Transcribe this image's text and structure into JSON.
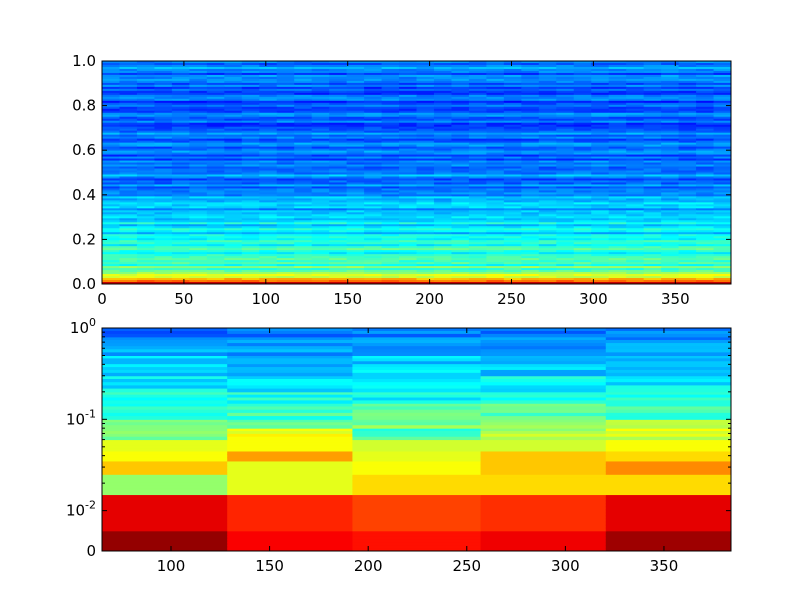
{
  "chart_data": [
    {
      "type": "heatmap",
      "title": "",
      "xlabel": "",
      "ylabel": "",
      "colormap": "jet",
      "x_range": [
        0,
        384
      ],
      "y_range": [
        0,
        1
      ],
      "x_ticks": [
        0,
        50,
        100,
        150,
        200,
        250,
        300,
        350
      ],
      "y_ticks": [
        0.0,
        0.2,
        0.4,
        0.6,
        0.8,
        1.0
      ],
      "x_tick_labels": [
        "0",
        "50",
        "100",
        "150",
        "200",
        "250",
        "300",
        "350"
      ],
      "y_tick_labels": [
        "0.0",
        "0.2",
        "0.4",
        "0.6",
        "0.8",
        "1.0"
      ],
      "grid": false,
      "levels_by_frequency": [
        {
          "y": 0.0,
          "level": 0.97
        },
        {
          "y": 0.01,
          "level": 0.88
        },
        {
          "y": 0.02,
          "level": 0.66
        },
        {
          "y": 0.04,
          "level": 0.56
        },
        {
          "y": 0.06,
          "level": 0.5
        },
        {
          "y": 0.08,
          "level": 0.45
        },
        {
          "y": 0.1,
          "level": 0.42
        },
        {
          "y": 0.15,
          "level": 0.4
        },
        {
          "y": 0.2,
          "level": 0.38
        },
        {
          "y": 0.25,
          "level": 0.35
        },
        {
          "y": 0.3,
          "level": 0.33
        },
        {
          "y": 0.35,
          "level": 0.31
        },
        {
          "y": 0.4,
          "level": 0.28
        },
        {
          "y": 0.5,
          "level": 0.25
        },
        {
          "y": 0.6,
          "level": 0.23
        },
        {
          "y": 0.7,
          "level": 0.22
        },
        {
          "y": 0.8,
          "level": 0.21
        },
        {
          "y": 0.9,
          "level": 0.22
        },
        {
          "y": 1.0,
          "level": 0.24
        }
      ]
    },
    {
      "type": "heatmap",
      "title": "",
      "xlabel": "",
      "ylabel": "",
      "colormap": "jet",
      "y_scale": "log",
      "x_range": [
        65,
        384
      ],
      "x_ticks": [
        100,
        150,
        200,
        250,
        300,
        350
      ],
      "x_tick_labels": [
        "100",
        "150",
        "200",
        "250",
        "300",
        "350"
      ],
      "y_tick_labels": [
        {
          "value": 1.0,
          "base": "10",
          "exp": "0"
        },
        {
          "value": 0.1,
          "base": "10",
          "exp": "-1"
        },
        {
          "value": 0.01,
          "base": "10",
          "exp": "-2"
        },
        {
          "value": 0,
          "base": "0",
          "exp": ""
        }
      ],
      "grid": false,
      "time_bins": [
        [
          65,
          128.5
        ],
        [
          128.5,
          192
        ],
        [
          192,
          257
        ],
        [
          257,
          320.5
        ],
        [
          320.5,
          384
        ]
      ],
      "bin_levels": [
        {
          "band": "0–0.005",
          "levels": [
            0.98,
            0.88,
            0.86,
            0.89,
            0.97
          ]
        },
        {
          "band": "0.005–0.015",
          "levels": [
            0.9,
            0.84,
            0.81,
            0.83,
            0.9
          ]
        },
        {
          "band": "0.015–0.025",
          "levels": [
            0.52,
            0.6,
            0.66,
            0.66,
            0.66
          ]
        },
        {
          "band": "0.025–0.035",
          "levels": [
            0.68,
            0.6,
            0.62,
            0.68,
            0.74
          ]
        },
        {
          "band": "0.035–0.045",
          "levels": [
            0.62,
            0.72,
            0.6,
            0.68,
            0.66
          ]
        },
        {
          "band": "0.045–0.06",
          "levels": [
            0.6,
            0.62,
            0.58,
            0.58,
            0.62
          ]
        },
        {
          "band": "0.06–0.08",
          "levels": [
            0.5,
            0.6,
            0.45,
            0.55,
            0.58
          ]
        },
        {
          "band": "0.08–0.1",
          "levels": [
            0.48,
            0.48,
            0.5,
            0.5,
            0.52
          ]
        },
        {
          "band": "0.1–0.15",
          "levels": [
            0.42,
            0.44,
            0.46,
            0.46,
            0.44
          ]
        },
        {
          "band": "0.15–0.2",
          "levels": [
            0.4,
            0.4,
            0.38,
            0.42,
            0.4
          ]
        },
        {
          "band": "0.2–0.3",
          "levels": [
            0.36,
            0.36,
            0.36,
            0.37,
            0.36
          ]
        },
        {
          "band": "0.3–0.5",
          "levels": [
            0.32,
            0.32,
            0.33,
            0.33,
            0.32
          ]
        },
        {
          "band": "0.5–0.8",
          "levels": [
            0.28,
            0.28,
            0.29,
            0.29,
            0.28
          ]
        },
        {
          "band": "0.8–1.0",
          "levels": [
            0.24,
            0.25,
            0.25,
            0.25,
            0.24
          ]
        }
      ]
    }
  ]
}
